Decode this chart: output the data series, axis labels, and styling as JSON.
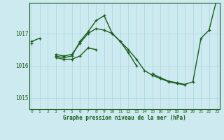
{
  "xlabel": "Graphe pression niveau de la mer (hPa)",
  "background_color": "#cdeaf0",
  "grid_color": "#a8d5de",
  "line_color": "#1a5c1a",
  "hours": [
    0,
    1,
    2,
    3,
    4,
    5,
    6,
    7,
    8,
    9,
    10,
    11,
    12,
    13,
    14,
    15,
    16,
    17,
    18,
    19,
    20,
    21,
    22,
    23
  ],
  "series": [
    [
      1016.75,
      1016.85,
      null,
      null,
      null,
      null,
      null,
      null,
      null,
      null,
      null,
      null,
      null,
      null,
      null,
      null,
      null,
      null,
      null,
      null,
      null,
      null,
      null,
      1018.1
    ],
    [
      1016.7,
      null,
      null,
      1016.35,
      1016.3,
      1016.35,
      1016.7,
      1017.0,
      1017.15,
      1017.1,
      1017.0,
      1016.75,
      1016.5,
      1016.2,
      1015.85,
      1015.7,
      1015.6,
      1015.5,
      1015.45,
      1015.4,
      null,
      null,
      null,
      null
    ],
    [
      null,
      null,
      null,
      1016.3,
      1016.25,
      1016.3,
      1016.75,
      1017.05,
      1017.4,
      1017.55,
      1017.0,
      1016.75,
      1016.4,
      1016.0,
      null,
      null,
      null,
      null,
      null,
      null,
      null,
      null,
      null,
      null
    ],
    [
      null,
      null,
      null,
      1016.25,
      1016.2,
      1016.2,
      1016.3,
      1016.55,
      1016.5,
      null,
      null,
      null,
      null,
      null,
      null,
      null,
      null,
      null,
      null,
      null,
      null,
      null,
      null,
      null
    ],
    [
      null,
      null,
      null,
      null,
      null,
      null,
      null,
      null,
      null,
      null,
      null,
      null,
      null,
      null,
      null,
      1015.75,
      1015.62,
      1015.52,
      1015.47,
      1015.42,
      1015.5,
      1016.85,
      1017.1,
      1018.1
    ]
  ],
  "ylim": [
    1014.65,
    1017.95
  ],
  "yticks": [
    1015,
    1016,
    1017
  ],
  "xlim": [
    -0.3,
    23.3
  ],
  "xticks": [
    0,
    1,
    2,
    3,
    4,
    5,
    6,
    7,
    8,
    9,
    10,
    11,
    12,
    13,
    14,
    15,
    16,
    17,
    18,
    19,
    20,
    21,
    22,
    23
  ],
  "marker_size": 3.5,
  "line_width": 1.0
}
